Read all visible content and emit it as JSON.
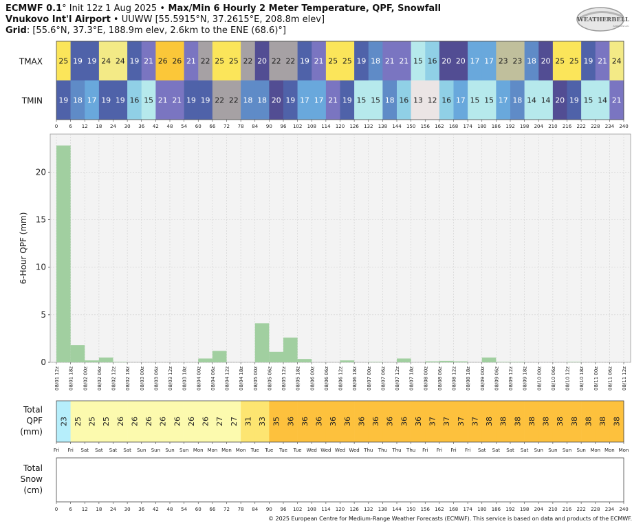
{
  "header": {
    "line1_bold": "ECMWF 0.1",
    "line1_deg": "°",
    "line1_init": " Init 12z 1 Aug 2025 ",
    "line1_bullet": "•",
    "line1_product": " Max/Min 6 Hourly 2 Meter Temperature,  QPF,  Snowfall",
    "line2_station": "Vnukovo Int'l Airport",
    "line2_rest": " • UUWW [55.5915°N, 37.2615°E, 208.8m elev]",
    "line3_label": "Grid",
    "line3_rest": ": [55.6°N, 37.3°E, 188.9m elev, 2.6km to the ENE (68.6)°]"
  },
  "logo": {
    "text": "WEATHERBELL",
    "sub": "Analytics LLC"
  },
  "footer": "© 2025 European Centre for Medium-Range Weather Forecasts (ECMWF). This service is based on data and products of the ECMWF.",
  "chart_data": [
    {
      "type": "heatmap",
      "name": "temperature",
      "rows": [
        "TMAX",
        "TMIN"
      ],
      "x_ticks": [
        0,
        6,
        12,
        18,
        24,
        30,
        36,
        42,
        48,
        54,
        60,
        66,
        72,
        78,
        84,
        90,
        96,
        102,
        108,
        114,
        120,
        126,
        132,
        138,
        144,
        150,
        156,
        162,
        168,
        174,
        180,
        186,
        192,
        198,
        204,
        210,
        216,
        222,
        228,
        234,
        240
      ],
      "tmax": [
        25,
        19,
        19,
        24,
        24,
        19,
        21,
        26,
        26,
        21,
        22,
        25,
        25,
        22,
        20,
        22,
        22,
        19,
        21,
        25,
        25,
        19,
        18,
        21,
        21,
        15,
        16,
        20,
        20,
        17,
        17,
        23,
        23,
        18,
        20,
        25,
        25,
        19,
        21,
        24
      ],
      "tmin": [
        19,
        18,
        17,
        19,
        19,
        16,
        15,
        21,
        21,
        19,
        19,
        22,
        22,
        18,
        18,
        20,
        19,
        17,
        17,
        21,
        19,
        15,
        15,
        18,
        16,
        13,
        12,
        16,
        17,
        15,
        15,
        17,
        18,
        14,
        14,
        20,
        19,
        15,
        14,
        21
      ]
    },
    {
      "type": "bar",
      "name": "qpf",
      "ylabel": "6-Hour QPF (mm)",
      "ylim": [
        0,
        24
      ],
      "y_ticks": [
        0,
        5,
        10,
        15,
        20
      ],
      "categories": [
        "08/01 12z",
        "08/01 18z",
        "08/02 00z",
        "08/02 06z",
        "08/02 12z",
        "08/02 18z",
        "08/03 00z",
        "08/03 06z",
        "08/03 12z",
        "08/03 18z",
        "08/04 00z",
        "08/04 06z",
        "08/04 12z",
        "08/04 18z",
        "08/05 00z",
        "08/05 06z",
        "08/05 12z",
        "08/05 18z",
        "08/06 00z",
        "08/06 06z",
        "08/06 12z",
        "08/06 18z",
        "08/07 00z",
        "08/07 06z",
        "08/07 12z",
        "08/07 18z",
        "08/08 00z",
        "08/08 06z",
        "08/08 12z",
        "08/08 18z",
        "08/09 00z",
        "08/09 06z",
        "08/09 12z",
        "08/09 18z",
        "08/10 00z",
        "08/10 06z",
        "08/10 12z",
        "08/10 18z",
        "08/11 00z",
        "08/11 06z"
      ],
      "tick_labels": [
        "08/01 12z",
        "08/01 18z",
        "08/02 00z",
        "08/02 06z",
        "08/02 12z",
        "08/02 18z",
        "08/03 00z",
        "08/03 06z",
        "08/03 12z",
        "08/03 18z",
        "08/04 00z",
        "08/04 06z",
        "08/04 12z",
        "08/04 18z",
        "08/05 00z",
        "08/05 06z",
        "08/05 12z",
        "08/05 18z",
        "08/06 00z",
        "08/06 06z",
        "08/06 12z",
        "08/06 18z",
        "08/07 00z",
        "08/07 06z",
        "08/07 12z",
        "08/07 18z",
        "08/08 00z",
        "08/08 06z",
        "08/08 12z",
        "08/08 18z",
        "08/09 00z",
        "08/09 06z",
        "08/09 12z",
        "08/09 18z",
        "08/10 00z",
        "08/10 06z",
        "08/10 12z",
        "08/10 18z",
        "08/11 00z",
        "08/11 06z",
        "08/11 12z"
      ],
      "values": [
        22.8,
        1.8,
        0.2,
        0.5,
        0.05,
        0,
        0,
        0,
        0,
        0,
        0.4,
        1.2,
        0,
        0,
        4.1,
        1.1,
        2.6,
        0.35,
        0,
        0,
        0.2,
        0,
        0.05,
        0,
        0.4,
        0,
        0.1,
        0.15,
        0.1,
        0,
        0.5,
        0.05,
        0.05,
        0,
        0,
        0,
        0.05,
        0,
        0,
        0
      ],
      "bar_color": "#a1cfa0",
      "grid": true
    },
    {
      "type": "heatmap",
      "name": "total_qpf",
      "ylabel_lines": [
        "Total",
        "QPF",
        "(mm)"
      ],
      "values": [
        23,
        25,
        25,
        25,
        26,
        26,
        26,
        26,
        26,
        26,
        26,
        27,
        27,
        31,
        33,
        35,
        36,
        36,
        36,
        36,
        36,
        36,
        36,
        36,
        36,
        36,
        37,
        37,
        37,
        37,
        38,
        38,
        38,
        38,
        38,
        38,
        38,
        38,
        38,
        38
      ],
      "day_labels": [
        "Fri",
        "Fri",
        "Sat",
        "Sat",
        "Sat",
        "Sat",
        "Sun",
        "Sun",
        "Sun",
        "Sun",
        "Mon",
        "Mon",
        "Mon",
        "Mon",
        "Tue",
        "Tue",
        "Tue",
        "Tue",
        "Wed",
        "Wed",
        "Wed",
        "Wed",
        "Thu",
        "Thu",
        "Thu",
        "Thu",
        "Fri",
        "Fri",
        "Fri",
        "Fri",
        "Sat",
        "Sat",
        "Sat",
        "Sat",
        "Sun",
        "Sun",
        "Sun",
        "Sun",
        "Mon",
        "Mon",
        "Mon"
      ]
    },
    {
      "type": "heatmap",
      "name": "total_snow",
      "ylabel_lines": [
        "Total",
        "Snow",
        "(cm)"
      ],
      "values": [],
      "x_ticks": [
        0,
        6,
        12,
        18,
        24,
        30,
        36,
        42,
        48,
        54,
        60,
        66,
        72,
        78,
        84,
        90,
        96,
        102,
        108,
        114,
        120,
        126,
        132,
        138,
        144,
        150,
        156,
        162,
        168,
        174,
        180,
        186,
        192,
        198,
        204,
        210,
        216,
        222,
        228,
        234,
        240
      ]
    }
  ]
}
